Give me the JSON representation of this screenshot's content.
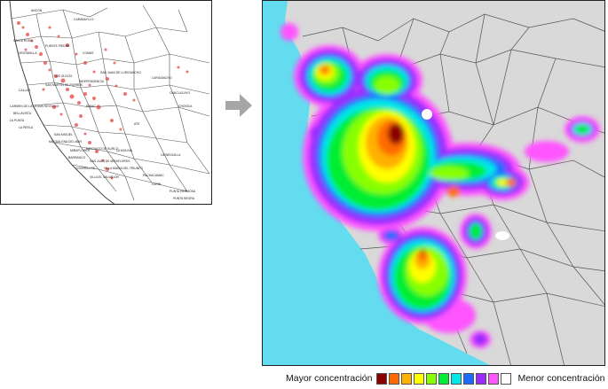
{
  "legend": {
    "high_label": "Mayor concentración",
    "low_label": "Menor concentración",
    "colors": [
      "#8b0000",
      "#ff6a00",
      "#ffb000",
      "#ffff00",
      "#88ff00",
      "#00ee33",
      "#00e8e8",
      "#1a6cff",
      "#9a2bff",
      "#ff55ff",
      "#ffffff"
    ]
  },
  "left_map": {
    "district_labels": [
      "ANCON",
      "SANTA ROSA",
      "CARABAYLLO",
      "VENTANILLA",
      "PUENTE PIEDRA",
      "COMAS",
      "LURIGANCHO",
      "SAN JUAN DE LURIGANCHO",
      "CALLAO",
      "SAN MARTIN DE PORRES",
      "INDEPENDENCIA",
      "LOS OLIVOS",
      "CARMEN DE LA LEGUA REYNOSO",
      "BELLAVISTA",
      "LA PUNTA",
      "LA PERLA",
      "RIMAC",
      "CHACLACAYO",
      "SAN MIGUEL",
      "ATE",
      "CHOSICA",
      "MAGDALENA DEL MAR",
      "LA MOLINA",
      "CIENEGUILLA",
      "MIRAFLORES",
      "BARRANCO",
      "SANTIAGO DE SURCO",
      "CHORRILLOS",
      "SAN JUAN DE MIRAFLORES",
      "VILLA MARIA DEL TRIUNFO",
      "VILLA EL SALVADOR",
      "PACHACAMAC",
      "LURIN",
      "PUNTA HERMOSA",
      "PUNTA NEGRA"
    ]
  },
  "icons": {
    "arrow": "right-arrow-icon"
  }
}
